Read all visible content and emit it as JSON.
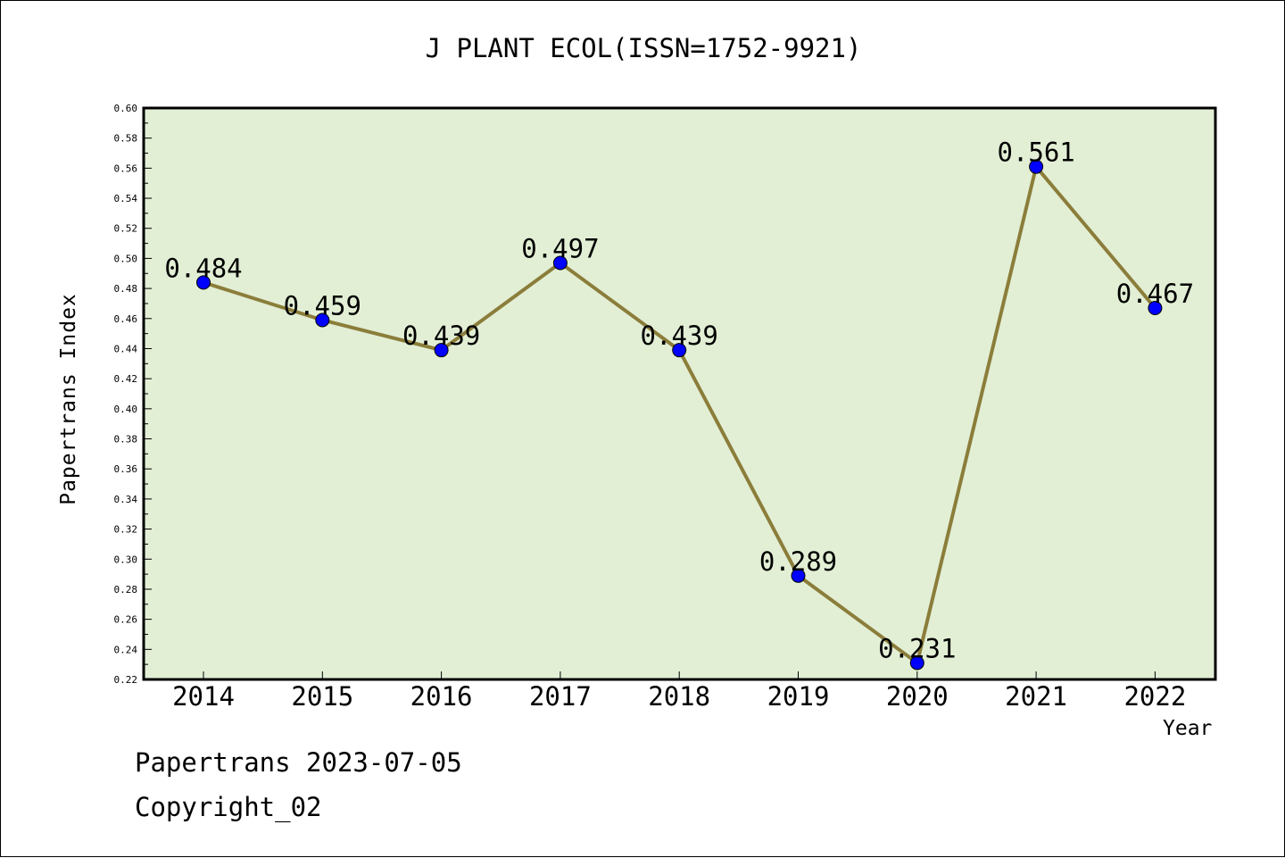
{
  "chart_data": {
    "type": "line",
    "title": "J PLANT ECOL(ISSN=1752-9921)",
    "xlabel": "Year",
    "ylabel": "Papertrans Index",
    "categories": [
      "2014",
      "2015",
      "2016",
      "2017",
      "2018",
      "2019",
      "2020",
      "2021",
      "2022"
    ],
    "series": [
      {
        "values": [
          0.484,
          0.459,
          0.439,
          0.497,
          0.439,
          0.289,
          0.231,
          0.561,
          0.467
        ],
        "line_color": "#8b7d3a",
        "marker_color": "#0000ff"
      }
    ],
    "data_labels": [
      "0.484",
      "0.459",
      "0.439",
      "0.497",
      "0.439",
      "0.289",
      "0.231",
      "0.561",
      "0.467"
    ],
    "ylim": [
      0.22,
      0.6
    ],
    "yticks": [
      "0.22",
      "0.24",
      "0.26",
      "0.28",
      "0.30",
      "0.32",
      "0.34",
      "0.36",
      "0.38",
      "0.40",
      "0.42",
      "0.44",
      "0.46",
      "0.48",
      "0.50",
      "0.52",
      "0.54",
      "0.56",
      "0.58",
      "0.60"
    ],
    "plot_background": "#e2efd5",
    "grid": false,
    "legend": "none"
  },
  "footer": {
    "line1": "Papertrans 2023-07-05",
    "line2": "Copyright_02"
  }
}
